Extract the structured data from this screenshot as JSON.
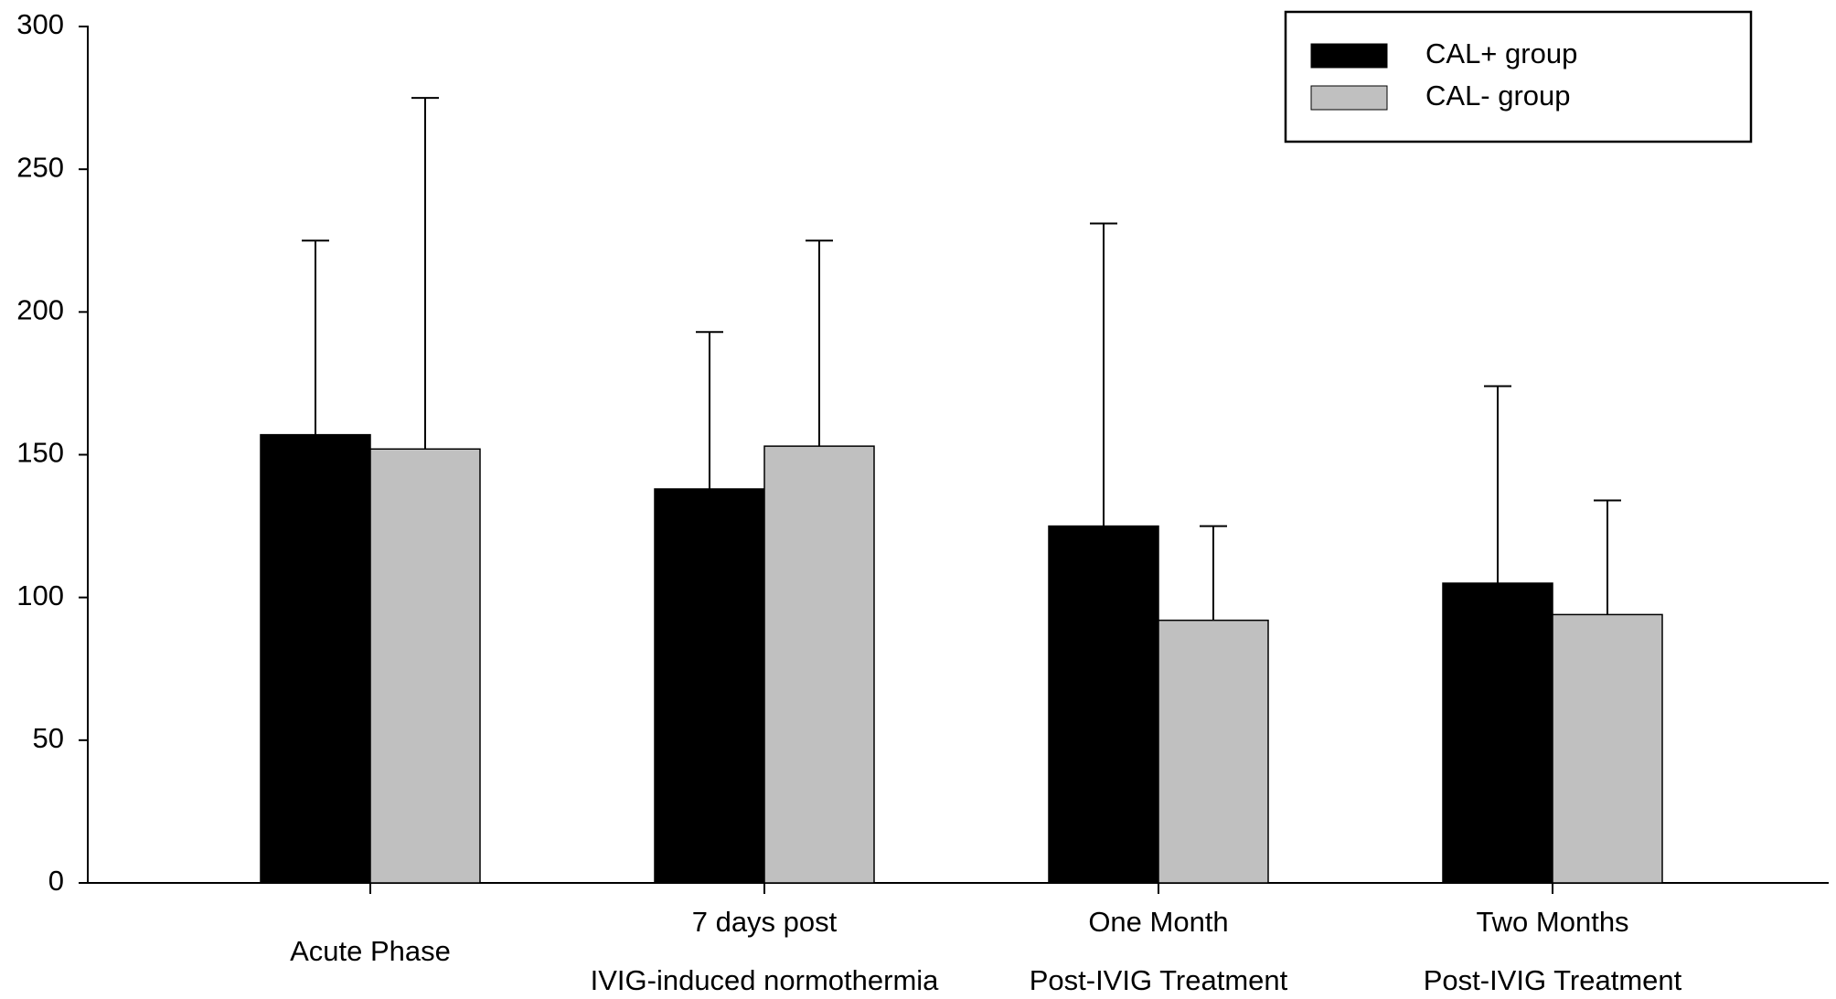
{
  "chart_data": {
    "type": "bar",
    "categories": [
      [
        "Acute Phase"
      ],
      [
        "7 days post",
        "IVIG-induced normothermia"
      ],
      [
        "One Month",
        "Post-IVIG Treatment"
      ],
      [
        "Two Months",
        "Post-IVIG Treatment"
      ]
    ],
    "series": [
      {
        "name": "CAL+ group",
        "color": "#000000",
        "values": [
          157,
          138,
          125,
          105
        ],
        "errors": [
          68,
          55,
          106,
          69
        ]
      },
      {
        "name": "CAL- group",
        "color": "#c0c0c0",
        "values": [
          152,
          153,
          92,
          94
        ],
        "errors": [
          123,
          72,
          33,
          40
        ]
      }
    ],
    "ylim": [
      0,
      300
    ],
    "yticks": [
      0,
      50,
      100,
      150,
      200,
      250,
      300
    ],
    "legend": "upper right"
  }
}
